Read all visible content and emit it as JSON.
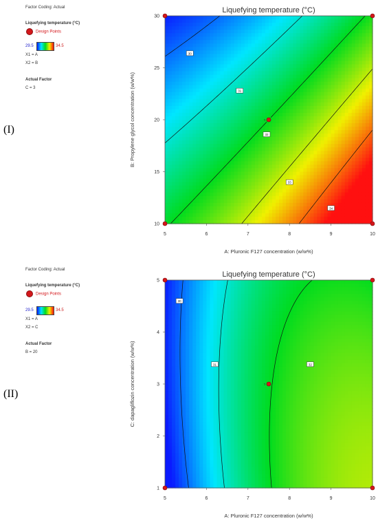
{
  "panels": [
    {
      "label": "(I)",
      "sidebar": {
        "factor_coding": "Factor Coding: Actual",
        "response": "Liquefying temperature (°C)",
        "design_points": "Design Points",
        "range_low": "29.5",
        "range_high": "34.5",
        "x1": "X1 = A",
        "x2": "X2 = B",
        "actual_factor_title": "Actual Factor",
        "actual_factor_value": "C = 3"
      },
      "colors": {
        "low": "#0a1aff",
        "high": "#ff1010"
      }
    },
    {
      "label": "(II)",
      "sidebar": {
        "factor_coding": "Factor Coding: Actual",
        "response": "Liquefying temperature (°C)",
        "design_points": "Design Points",
        "range_low": "29.5",
        "range_high": "34.5",
        "x1": "X1 = A",
        "x2": "X2 = C",
        "actual_factor_title": "Actual Factor",
        "actual_factor_value": "B = 20"
      },
      "colors": {
        "low": "#0a1aff",
        "high": "#ff1010"
      }
    }
  ],
  "chart_data": [
    {
      "type": "heatmap",
      "subtype": "contour",
      "title": "Liquefying temperature (°C)",
      "xlabel": "A: Pluronic F127 concentration (w/w%)",
      "ylabel": "B: Propylene glycol concentration (w/w%)",
      "xlim": [
        5,
        10
      ],
      "ylim": [
        10,
        30
      ],
      "xticks": [
        "5",
        "6",
        "7",
        "8",
        "9",
        "10"
      ],
      "yticks": [
        "10",
        "15",
        "20",
        "25",
        "30"
      ],
      "color_range": [
        29.5,
        34.5
      ],
      "design_points": [
        {
          "x": 5,
          "y": 10
        },
        {
          "x": 10,
          "y": 10
        },
        {
          "x": 5,
          "y": 30
        },
        {
          "x": 10,
          "y": 30
        },
        {
          "x": 7.5,
          "y": 20,
          "label": "5"
        }
      ],
      "model": {
        "c0": 32.0,
        "cx": 0.62,
        "cy": -0.145,
        "cxx": 0.045,
        "cyy": 0,
        "cxy": -0.01,
        "xc": 7.5,
        "yc": 20
      },
      "contours": [
        {
          "level": 30,
          "label": "30",
          "label_at": [
            5.6,
            26.4
          ]
        },
        {
          "level": 31,
          "label": "31",
          "label_at": [
            6.8,
            22.8
          ]
        },
        {
          "level": 32,
          "label": "32",
          "label_at": [
            7.45,
            18.6
          ]
        },
        {
          "level": 33,
          "label": "33",
          "label_at": [
            8.0,
            14.0
          ]
        },
        {
          "level": 34,
          "label": "34",
          "label_at": [
            9.0,
            11.5
          ]
        }
      ]
    },
    {
      "type": "heatmap",
      "subtype": "contour",
      "title": "Liquefying temperature (°C)",
      "xlabel": "A: Pluronic F127 concentration (w/w%)",
      "ylabel": "C: dapagliflozin concentration (w/w%)",
      "xlim": [
        5,
        10
      ],
      "ylim": [
        1,
        5
      ],
      "xticks": [
        "5",
        "6",
        "7",
        "8",
        "9",
        "10"
      ],
      "yticks": [
        "1",
        "2",
        "3",
        "4",
        "5"
      ],
      "color_range": [
        29.5,
        34.5
      ],
      "design_points": [
        {
          "x": 5,
          "y": 1
        },
        {
          "x": 10,
          "y": 1
        },
        {
          "x": 5,
          "y": 5
        },
        {
          "x": 10,
          "y": 5
        },
        {
          "x": 7.5,
          "y": 3,
          "label": "5"
        }
      ],
      "model": {
        "c0": 31.95,
        "cx": 0.62,
        "cy": -0.08,
        "cxx": -0.14,
        "cyy": -0.04,
        "cxy": -0.06,
        "xc": 7.5,
        "yc": 3
      },
      "contours": [
        {
          "level": 30,
          "label": "30",
          "label_at": [
            5.35,
            4.6
          ]
        },
        {
          "level": 31,
          "label": "31",
          "label_at": [
            6.2,
            3.38
          ]
        },
        {
          "level": 32,
          "label": "32",
          "label_at": [
            8.5,
            3.38
          ]
        }
      ]
    }
  ]
}
